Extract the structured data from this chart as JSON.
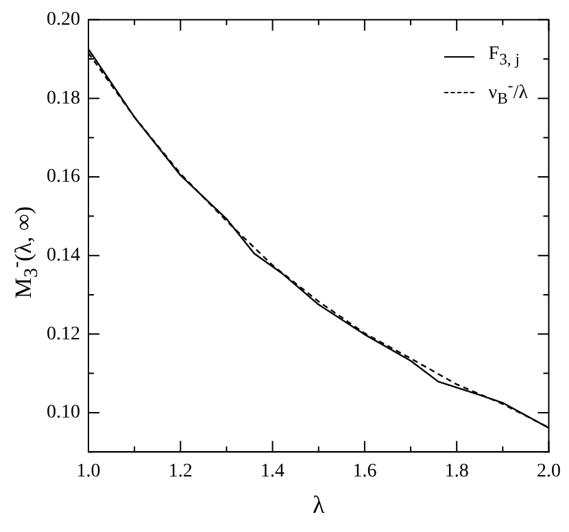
{
  "chart_data": {
    "type": "line",
    "xlabel": "λ",
    "ylabel": "M$_{3}$$^{-}$(λ, ∞)",
    "legend": "top right",
    "grid": false,
    "marker": "none",
    "xlim": [
      1.0,
      2.0
    ],
    "ylim": [
      0.09,
      0.2
    ],
    "xticks": [
      {
        "value": 1.0,
        "label": "1.0"
      },
      {
        "value": 1.1,
        "label": null
      },
      {
        "value": 1.2,
        "label": "1.2"
      },
      {
        "value": 1.3,
        "label": null
      },
      {
        "value": 1.4,
        "label": "1.4"
      },
      {
        "value": 1.5,
        "label": null
      },
      {
        "value": 1.6,
        "label": "1.6"
      },
      {
        "value": 1.7,
        "label": null
      },
      {
        "value": 1.8,
        "label": "1.8"
      },
      {
        "value": 1.9,
        "label": null
      },
      {
        "value": 2.0,
        "label": "2.0"
      }
    ],
    "yticks": [
      {
        "value": 0.09,
        "label": null
      },
      {
        "value": 0.1,
        "label": "0.10"
      },
      {
        "value": 0.11,
        "label": null
      },
      {
        "value": 0.12,
        "label": "0.12"
      },
      {
        "value": 0.13,
        "label": null
      },
      {
        "value": 0.14,
        "label": "0.14"
      },
      {
        "value": 0.15,
        "label": null
      },
      {
        "value": 0.16,
        "label": "0.16"
      },
      {
        "value": 0.17,
        "label": null
      },
      {
        "value": 0.18,
        "label": "0.18"
      },
      {
        "value": 0.19,
        "label": null
      },
      {
        "value": 0.2,
        "label": "0.20"
      }
    ],
    "series": [
      {
        "name": "F$_{3, j}$",
        "color": "#000000",
        "line_style": "solid",
        "x": [
          1.0,
          1.1,
          1.2,
          1.3,
          1.36,
          1.42,
          1.5,
          1.6,
          1.7,
          1.76,
          1.85,
          1.9,
          2.0
        ],
        "values": [
          0.1925,
          0.1752,
          0.1604,
          0.1493,
          0.1405,
          0.1355,
          0.1275,
          0.1199,
          0.1132,
          0.1079,
          0.1045,
          0.1025,
          0.0961
        ]
      },
      {
        "name": "ν$_{B}$$^{-}$/λ",
        "color": "#000000",
        "line_style": "dashed",
        "x": [
          1.0,
          1.1,
          1.2,
          1.3,
          1.4,
          1.5,
          1.6,
          1.7,
          1.8,
          1.9,
          2.0
        ],
        "values": [
          0.1915,
          0.1752,
          0.1608,
          0.1488,
          0.1375,
          0.1283,
          0.1202,
          0.1138,
          0.1072,
          0.1022,
          0.0962
        ]
      }
    ]
  }
}
